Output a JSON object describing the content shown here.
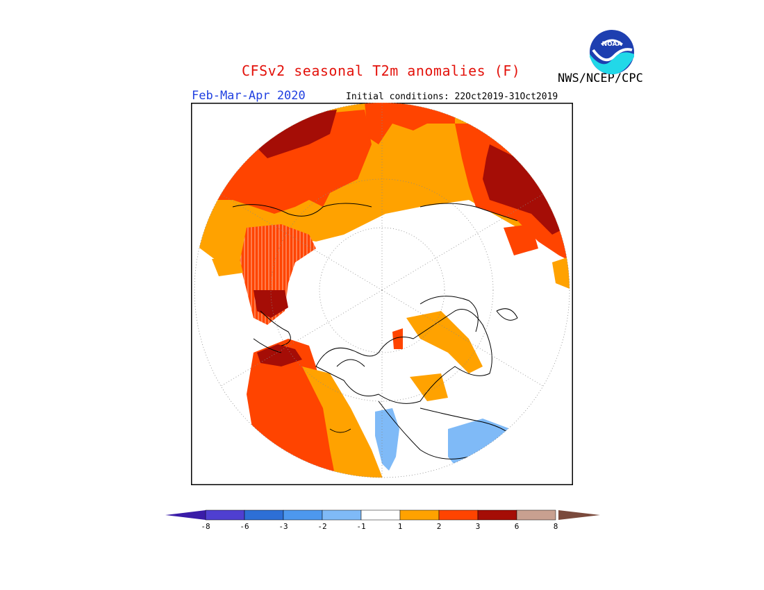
{
  "header": {
    "title": "CFSv2 seasonal T2m anomalies (F)",
    "agency": "NWS/NCEP/CPC",
    "season": "Feb-Mar-Apr 2020",
    "initial_conditions": "Initial conditions: 22Oct2019-31Oct2019",
    "logo_text": "NOAA"
  },
  "legend": {
    "ticks": [
      "-8",
      "-6",
      "-3",
      "-2",
      "-1",
      "1",
      "2",
      "3",
      "6",
      "8"
    ],
    "colors": [
      "#3a1ca8",
      "#4f3fd1",
      "#2d6fd6",
      "#4d98ee",
      "#7fbaf7",
      "#ffffff",
      "#ffa200",
      "#ff4400",
      "#a50d06",
      "#c8a090",
      "#7a4a3c"
    ]
  }
}
